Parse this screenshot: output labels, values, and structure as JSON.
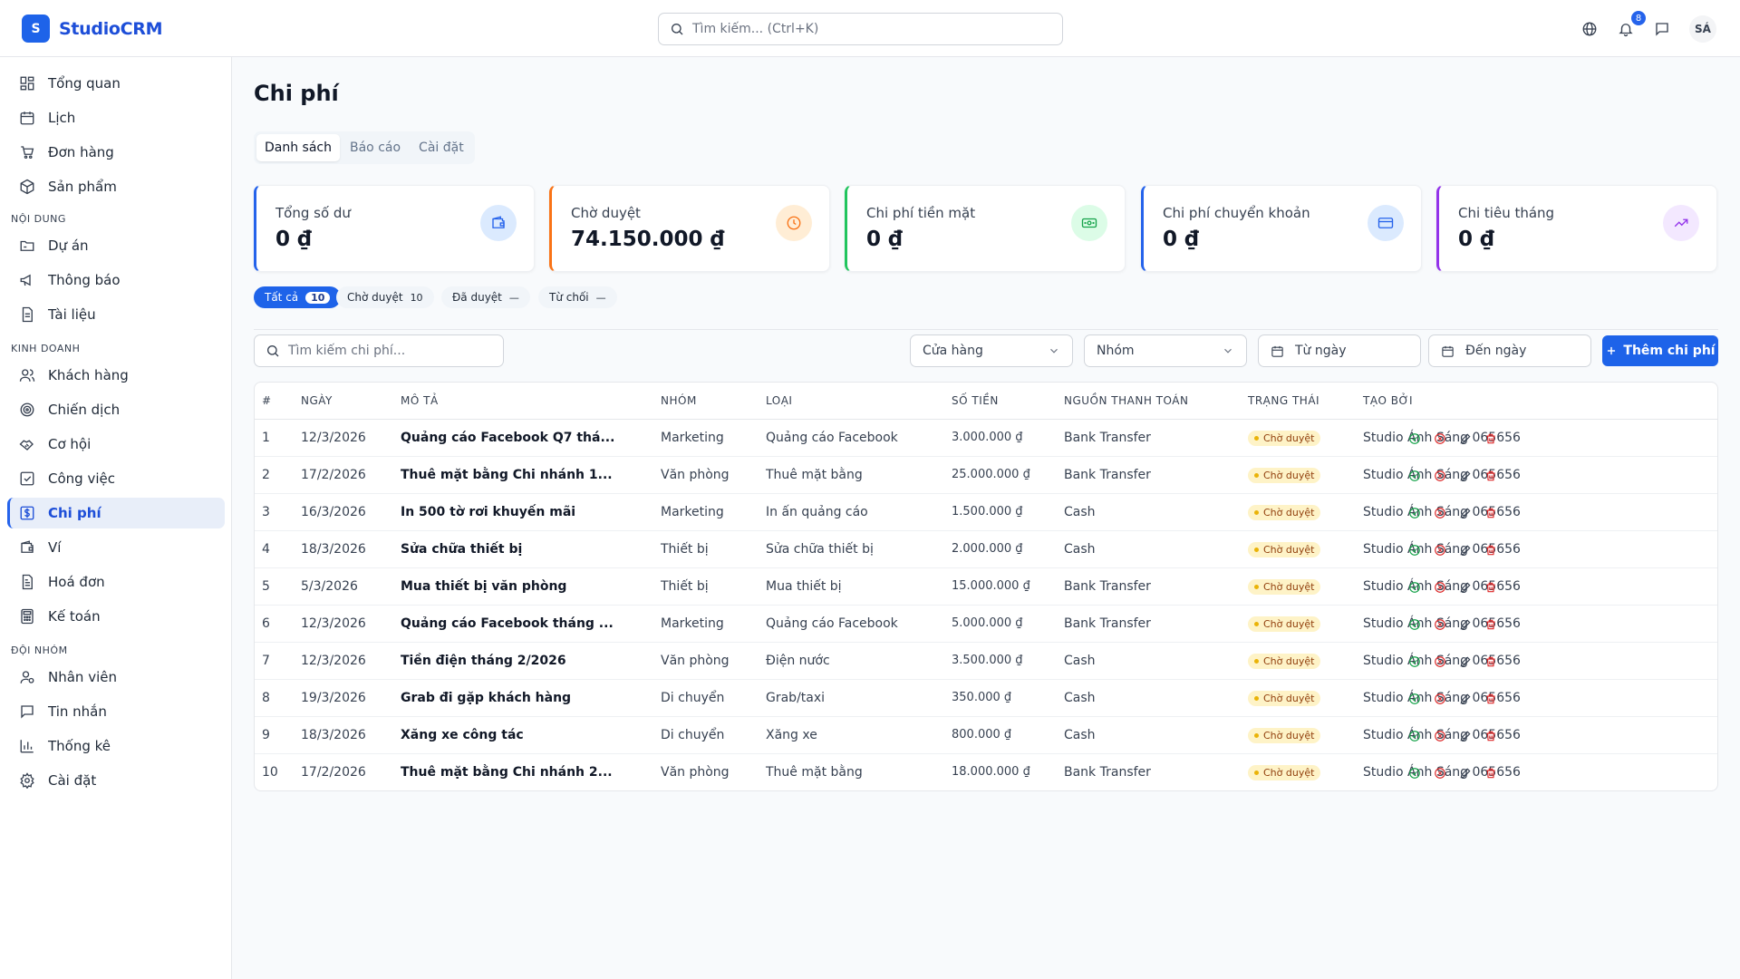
{
  "app": {
    "logo_letter": "S",
    "name": "StudioCRM"
  },
  "header": {
    "search_placeholder": "Tìm kiếm... (Ctrl+K)",
    "notification_count": "8",
    "avatar_initials": "SÁ"
  },
  "sidebar": {
    "top_items": [
      {
        "label": "Tổng quan",
        "icon": "dashboard-icon"
      },
      {
        "label": "Lịch",
        "icon": "calendar-icon"
      },
      {
        "label": "Đơn hàng",
        "icon": "cart-icon"
      },
      {
        "label": "Sản phẩm",
        "icon": "box-icon"
      }
    ],
    "sections": [
      {
        "title": "NỘI DUNG",
        "items": [
          {
            "label": "Dự án",
            "icon": "folder-icon"
          },
          {
            "label": "Thông báo",
            "icon": "megaphone-icon"
          },
          {
            "label": "Tài liệu",
            "icon": "document-icon"
          }
        ]
      },
      {
        "title": "KINH DOANH",
        "items": [
          {
            "label": "Khách hàng",
            "icon": "users-icon"
          },
          {
            "label": "Chiến dịch",
            "icon": "target-icon"
          },
          {
            "label": "Cơ hội",
            "icon": "handshake-icon"
          },
          {
            "label": "Công việc",
            "icon": "checkbox-icon"
          },
          {
            "label": "Chi phí",
            "icon": "dollar-icon",
            "active": true
          },
          {
            "label": "Ví",
            "icon": "wallet-icon"
          },
          {
            "label": "Hoá đơn",
            "icon": "invoice-icon"
          },
          {
            "label": "Kế toán",
            "icon": "calculator-icon"
          }
        ]
      },
      {
        "title": "ĐỘI NHÓM",
        "items": [
          {
            "label": "Nhân viên",
            "icon": "user-gear-icon"
          },
          {
            "label": "Tin nhắn",
            "icon": "message-icon"
          },
          {
            "label": "Thống kê",
            "icon": "bar-chart-icon"
          },
          {
            "label": "Cài đặt",
            "icon": "gear-icon"
          }
        ]
      }
    ]
  },
  "page": {
    "title": "Chi phí",
    "tabs": [
      "Danh sách",
      "Báo cáo",
      "Cài đặt"
    ],
    "active_tab": 0
  },
  "stats": [
    {
      "label": "Tổng số dư",
      "value": "0 ₫",
      "icon": "wallet-icon",
      "accent": "#2563eb",
      "icon_bg": "#dbeafe"
    },
    {
      "label": "Chờ duyệt",
      "value": "74.150.000 ₫",
      "icon": "clock-icon",
      "accent": "#f97316",
      "icon_bg": "#ffedd5"
    },
    {
      "label": "Chi phí tiền mặt",
      "value": "0 ₫",
      "icon": "banknote-icon",
      "accent": "#22c55e",
      "icon_bg": "#dcfce7"
    },
    {
      "label": "Chi phí chuyển khoản",
      "value": "0 ₫",
      "icon": "credit-card-icon",
      "accent": "#2563eb",
      "icon_bg": "#dbeafe"
    },
    {
      "label": "Chi tiêu tháng",
      "value": "0 ₫",
      "icon": "trending-up-icon",
      "accent": "#9333ea",
      "icon_bg": "#f3e8ff"
    }
  ],
  "status_filters": [
    {
      "label": "Tất cả",
      "count": "10"
    },
    {
      "label": "Chờ duyệt",
      "count": "10"
    },
    {
      "label": "Đã duyệt",
      "count": "—"
    },
    {
      "label": "Từ chối",
      "count": "—"
    }
  ],
  "toolbar": {
    "search_placeholder": "Tìm kiếm chi phí...",
    "store_select": "Cửa hàng",
    "group_select": "Nhóm",
    "from_date": "Từ ngày",
    "to_date": "Đến ngày",
    "add_label": "Thêm chi phí"
  },
  "table": {
    "columns": [
      "#",
      "Ngày",
      "Mô tả",
      "Nhóm",
      "Loại",
      "Số tiền",
      "Nguồn thanh toán",
      "Trạng thái",
      "Tạo bởi"
    ],
    "rows": [
      {
        "no": "1",
        "date": "12/3/2026",
        "desc": "Quảng cáo Facebook Q7 thá...",
        "group": "Marketing",
        "type": "Quảng cáo Facebook",
        "amount": "3.000.000 ₫",
        "source": "Bank Transfer",
        "status": "Chờ duyệt",
        "creator": "Studio Ánh Sáng 065656"
      },
      {
        "no": "2",
        "date": "17/2/2026",
        "desc": "Thuê mặt bằng Chi nhánh 1...",
        "group": "Văn phòng",
        "type": "Thuê mặt bằng",
        "amount": "25.000.000 ₫",
        "source": "Bank Transfer",
        "status": "Chờ duyệt",
        "creator": "Studio Ánh Sáng 065656"
      },
      {
        "no": "3",
        "date": "16/3/2026",
        "desc": "In 500 tờ rơi khuyến mãi",
        "group": "Marketing",
        "type": "In ấn quảng cáo",
        "amount": "1.500.000 ₫",
        "source": "Cash",
        "status": "Chờ duyệt",
        "creator": "Studio Ánh Sáng 065656"
      },
      {
        "no": "4",
        "date": "18/3/2026",
        "desc": "Sửa chữa thiết bị",
        "group": "Thiết bị",
        "type": "Sửa chữa thiết bị",
        "amount": "2.000.000 ₫",
        "source": "Cash",
        "status": "Chờ duyệt",
        "creator": "Studio Ánh Sáng 065656"
      },
      {
        "no": "5",
        "date": "5/3/2026",
        "desc": "Mua thiết bị văn phòng",
        "group": "Thiết bị",
        "type": "Mua thiết bị",
        "amount": "15.000.000 ₫",
        "source": "Bank Transfer",
        "status": "Chờ duyệt",
        "creator": "Studio Ánh Sáng 065656"
      },
      {
        "no": "6",
        "date": "12/3/2026",
        "desc": "Quảng cáo Facebook tháng ...",
        "group": "Marketing",
        "type": "Quảng cáo Facebook",
        "amount": "5.000.000 ₫",
        "source": "Bank Transfer",
        "status": "Chờ duyệt",
        "creator": "Studio Ánh Sáng 065656"
      },
      {
        "no": "7",
        "date": "12/3/2026",
        "desc": "Tiền điện tháng 2/2026",
        "group": "Văn phòng",
        "type": "Điện nước",
        "amount": "3.500.000 ₫",
        "source": "Cash",
        "status": "Chờ duyệt",
        "creator": "Studio Ánh Sáng 065656"
      },
      {
        "no": "8",
        "date": "19/3/2026",
        "desc": "Grab đi gặp khách hàng",
        "group": "Di chuyển",
        "type": "Grab/taxi",
        "amount": "350.000 ₫",
        "source": "Cash",
        "status": "Chờ duyệt",
        "creator": "Studio Ánh Sáng 065656"
      },
      {
        "no": "9",
        "date": "18/3/2026",
        "desc": "Xăng xe công tác",
        "group": "Di chuyển",
        "type": "Xăng xe",
        "amount": "800.000 ₫",
        "source": "Cash",
        "status": "Chờ duyệt",
        "creator": "Studio Ánh Sáng 065656"
      },
      {
        "no": "10",
        "date": "17/2/2026",
        "desc": "Thuê mặt bằng Chi nhánh 2...",
        "group": "Văn phòng",
        "type": "Thuê mặt bằng",
        "amount": "18.000.000 ₫",
        "source": "Bank Transfer",
        "status": "Chờ duyệt",
        "creator": "Studio Ánh Sáng 065656"
      }
    ],
    "row_actions": [
      "approve-icon",
      "reject-icon",
      "edit-icon",
      "delete-icon"
    ]
  }
}
